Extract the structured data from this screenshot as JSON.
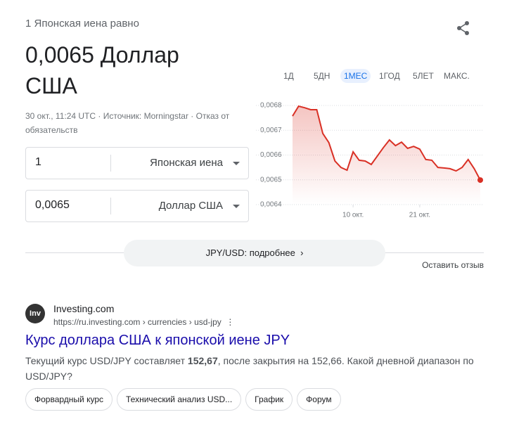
{
  "header": {
    "subtitle": "1 Японская иена равно",
    "value": "0,0065 Доллар США",
    "meta": "30 окт., 11:24 UTC · Источник: Morningstar · Отказ от обязательств"
  },
  "converter": [
    {
      "amount": "1",
      "currency": "Японская иена"
    },
    {
      "amount": "0,0065",
      "currency": "Доллар США"
    }
  ],
  "ranges": [
    "1Д",
    "5ДН",
    "1МЕС",
    "1ГОД",
    "5ЛЕТ",
    "МАКС."
  ],
  "active_range_index": 2,
  "chart_data": {
    "type": "line",
    "categories": [
      null,
      null,
      null,
      null,
      null,
      null,
      null,
      null,
      null,
      null,
      "10 окт.",
      null,
      null,
      null,
      null,
      null,
      null,
      null,
      null,
      null,
      null,
      "21 окт.",
      null,
      null,
      null,
      null,
      null,
      null,
      null,
      null,
      null,
      null
    ],
    "series": [
      {
        "color": "#d93025",
        "values": [
          0.006757,
          0.006797,
          0.006791,
          0.006783,
          0.006783,
          0.006687,
          0.00665,
          0.006576,
          0.00655,
          0.006539,
          0.006613,
          0.006579,
          0.006576,
          0.006562,
          0.006596,
          0.00663,
          0.006661,
          0.006638,
          0.006652,
          0.006627,
          0.006635,
          0.006624,
          0.006582,
          0.006579,
          0.00655,
          0.006548,
          0.006545,
          0.006536,
          0.00655,
          0.006582,
          0.006545,
          0.006499
        ]
      }
    ],
    "ylim": [
      0.0064,
      0.0068
    ],
    "yticks": [
      {
        "value": 0.0064,
        "label": "0,0064"
      },
      {
        "value": 0.0065,
        "label": "0,0065"
      },
      {
        "value": 0.0066,
        "label": "0,0066"
      },
      {
        "value": 0.0067,
        "label": "0,0067"
      },
      {
        "value": 0.0068,
        "label": "0,0068"
      }
    ],
    "grid": true
  },
  "more_button": "JPY/USD: подробнее",
  "feedback": "Оставить отзыв",
  "result": {
    "favicon": "Inv",
    "site": "Investing.com",
    "url": "https://ru.investing.com › currencies › usd-jpy",
    "title": "Курс доллара США к японской иене JPY",
    "snippet_start": "Текущий курс USD/JPY составляет ",
    "snippet_bold": "152,67",
    "snippet_end": ", после закрытия на 152,66. Какой дневной диапазон по USD/JPY?",
    "chips": [
      "Форвардный курс",
      "Технический анализ USD...",
      "График",
      "Форум"
    ]
  }
}
